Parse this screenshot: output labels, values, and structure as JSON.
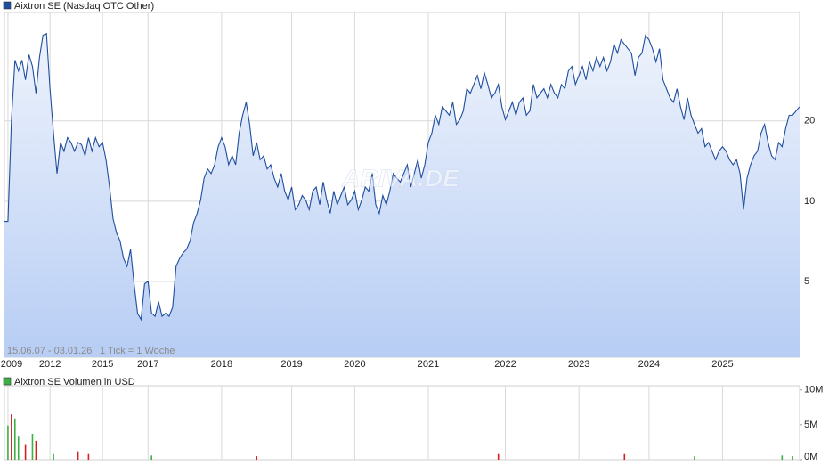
{
  "chart_data": [
    {
      "type": "line",
      "series": [
        {
          "name": "Aixtron SE (Nasdaq OTC Other)",
          "color": "#1f4e9e",
          "values": [
            8.4,
            8.4,
            20.2,
            33.8,
            30.8,
            33.8,
            28.5,
            35.4,
            32.0,
            25.4,
            34.6,
            41.9,
            42.5,
            26.4,
            18.0,
            12.7,
            16.6,
            15.4,
            17.3,
            16.6,
            15.4,
            16.6,
            16.3,
            14.8,
            17.3,
            15.4,
            17.3,
            16.0,
            16.6,
            14.3,
            11.3,
            8.6,
            7.6,
            7.1,
            6.1,
            5.7,
            6.6,
            4.9,
            3.8,
            3.6,
            4.9,
            5.0,
            3.8,
            3.7,
            4.2,
            3.7,
            3.8,
            3.7,
            4.0,
            5.7,
            6.1,
            6.4,
            6.6,
            7.1,
            8.3,
            9.0,
            10.1,
            12.2,
            13.2,
            12.7,
            13.7,
            16.0,
            17.3,
            16.0,
            13.7,
            14.8,
            13.7,
            18.0,
            21.0,
            23.5,
            19.4,
            14.8,
            16.6,
            14.3,
            14.8,
            13.2,
            13.7,
            12.2,
            11.3,
            12.7,
            10.9,
            10.1,
            11.3,
            9.3,
            9.7,
            10.5,
            10.1,
            9.3,
            10.9,
            11.3,
            9.7,
            11.8,
            10.1,
            9.0,
            10.9,
            9.7,
            10.5,
            11.3,
            9.7,
            10.1,
            10.9,
            9.3,
            10.1,
            11.3,
            10.9,
            12.7,
            9.7,
            9.0,
            10.5,
            9.7,
            10.9,
            12.7,
            12.2,
            11.8,
            12.7,
            13.7,
            11.3,
            12.7,
            14.3,
            12.2,
            13.7,
            16.6,
            18.0,
            21.0,
            19.4,
            22.6,
            21.8,
            21.0,
            23.5,
            19.4,
            20.2,
            21.8,
            26.4,
            25.4,
            27.4,
            29.6,
            26.4,
            30.3,
            27.4,
            24.4,
            25.4,
            27.4,
            22.6,
            20.2,
            21.8,
            23.5,
            21.0,
            23.5,
            24.4,
            21.0,
            21.8,
            27.4,
            24.4,
            25.4,
            26.4,
            24.4,
            27.4,
            25.4,
            24.4,
            27.4,
            26.4,
            30.8,
            32.0,
            27.4,
            29.6,
            32.0,
            28.5,
            33.3,
            30.8,
            34.6,
            32.0,
            34.6,
            30.8,
            33.3,
            38.8,
            35.9,
            40.3,
            38.8,
            37.3,
            35.9,
            29.6,
            34.6,
            35.9,
            41.9,
            40.3,
            37.3,
            33.3,
            37.3,
            28.5,
            26.4,
            24.4,
            23.5,
            26.4,
            22.6,
            20.2,
            24.4,
            21.0,
            19.4,
            18.0,
            18.7,
            16.0,
            16.6,
            15.4,
            14.3,
            15.4,
            16.0,
            15.4,
            14.3,
            13.7,
            14.3,
            12.7,
            9.3,
            12.2,
            13.7,
            14.8,
            15.4,
            18.0,
            19.4,
            16.6,
            14.8,
            14.3,
            16.6,
            16.0,
            18.7,
            21.0,
            21.0,
            21.8,
            22.6
          ]
        }
      ],
      "x": [
        0,
        1,
        2,
        3,
        4,
        5,
        6,
        7,
        8,
        9,
        10,
        11,
        12,
        13,
        14,
        15,
        16,
        17,
        18,
        19,
        20,
        21,
        22,
        23,
        24,
        25,
        26,
        27,
        28,
        29,
        30,
        31,
        32,
        33,
        34,
        35,
        36,
        37,
        38,
        39,
        40,
        41,
        42,
        43,
        44,
        45,
        46,
        47,
        48,
        49,
        50,
        51,
        52,
        53,
        54,
        55,
        56,
        57,
        58,
        59,
        60,
        61,
        62,
        63,
        64,
        65,
        66,
        67,
        68,
        69,
        70,
        71,
        72,
        73,
        74,
        75,
        76,
        77,
        78,
        79,
        80,
        81,
        82,
        83,
        84,
        85,
        86,
        87,
        88,
        89,
        90,
        91,
        92,
        93,
        94,
        95,
        96,
        97,
        98,
        99,
        100,
        101,
        102,
        103,
        104,
        105,
        106,
        107,
        108,
        109,
        110,
        111,
        112,
        113,
        114,
        115,
        116,
        117,
        118,
        119,
        120,
        121,
        122,
        123,
        124,
        125,
        126,
        127,
        128,
        129,
        130,
        131,
        132,
        133,
        134,
        135,
        136,
        137,
        138,
        139,
        140,
        141,
        142,
        143,
        144,
        145,
        146,
        147,
        148,
        149,
        150,
        151,
        152,
        153,
        154,
        155,
        156,
        157,
        158,
        159,
        160,
        161,
        162,
        163,
        164,
        165,
        166,
        167,
        168,
        169,
        170,
        171,
        172,
        173,
        174,
        175,
        176,
        177,
        178,
        179,
        180,
        181,
        182,
        183,
        184,
        185,
        186,
        187,
        188,
        189,
        190,
        191,
        192,
        193,
        194,
        195,
        196,
        197,
        198,
        199,
        200,
        201,
        202,
        203,
        204,
        205,
        206,
        207,
        208,
        209,
        210,
        211,
        212,
        213,
        214,
        215,
        216,
        217,
        218,
        219,
        220,
        221,
        222,
        223,
        224,
        225,
        226,
        227
      ],
      "xlim": [
        0,
        227
      ],
      "xticks": [
        {
          "value": 1,
          "label": "2009"
        },
        {
          "value": 13,
          "label": "2012"
        },
        {
          "value": 28,
          "label": "2015"
        },
        {
          "value": 41,
          "label": "2017"
        },
        {
          "value": 62,
          "label": "2018"
        },
        {
          "value": 82,
          "label": "2019"
        },
        {
          "value": 100,
          "label": "2020"
        },
        {
          "value": 121,
          "label": "2021"
        },
        {
          "value": 143,
          "label": "2022"
        },
        {
          "value": 164,
          "label": "2023"
        },
        {
          "value": 184,
          "label": "2024"
        },
        {
          "value": 205,
          "label": "2025"
        }
      ],
      "ylim": [
        2.6,
        51
      ],
      "yticks": [
        5,
        10,
        20
      ],
      "log_scale": true,
      "grid": true,
      "range_note": "15.06.07 - 03.01.26",
      "tick_note": "1 Tick = 1 Woche",
      "watermark": "ARIVA.DE"
    },
    {
      "type": "bar",
      "series": [
        {
          "name": "Aixtron SE Volumen in USD",
          "color": "#3cb043",
          "x": [
            1,
            3,
            4,
            8,
            14,
            42,
            197,
            222,
            225
          ],
          "values": [
            4900000,
            5900000,
            3300000,
            3700000,
            800000,
            600000,
            500000,
            600000,
            500000
          ]
        },
        {
          "color": "#d42020",
          "x": [
            2,
            6,
            9,
            21,
            24,
            72,
            141,
            177
          ],
          "values": [
            6500000,
            2100000,
            2700000,
            1200000,
            800000,
            500000,
            800000,
            800000
          ]
        }
      ],
      "xlim": [
        0,
        227
      ],
      "ylim": [
        0,
        10600000
      ],
      "yticks": [
        {
          "value": 0,
          "label": "0M"
        },
        {
          "value": 5000000,
          "label": "5M"
        },
        {
          "value": 10000000,
          "label": "10M"
        }
      ]
    }
  ]
}
